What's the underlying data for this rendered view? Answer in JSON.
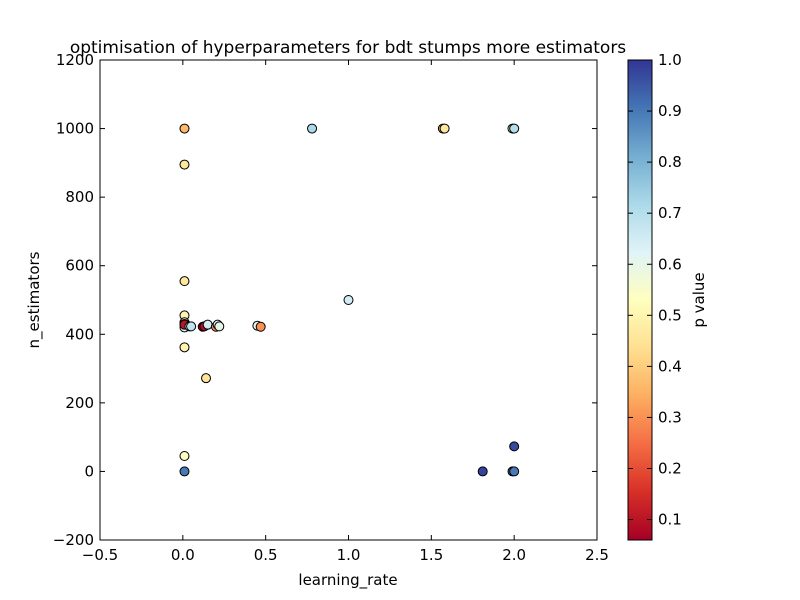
{
  "chart_data": {
    "type": "scatter",
    "title": "optimisation of hyperparameters for bdt stumps more estimators",
    "xlabel": "learning_rate",
    "ylabel": "n_estimators",
    "xlim": [
      -0.5,
      2.5
    ],
    "ylim": [
      -200,
      1200
    ],
    "x_ticks": [
      -0.5,
      0.0,
      0.5,
      1.0,
      1.5,
      2.0,
      2.5
    ],
    "x_tick_labels": [
      "−0.5",
      "0.0",
      "0.5",
      "1.0",
      "1.5",
      "2.0",
      "2.5"
    ],
    "y_ticks": [
      -200,
      0,
      200,
      400,
      600,
      800,
      1000,
      1200
    ],
    "y_tick_labels": [
      "−200",
      "0",
      "200",
      "400",
      "600",
      "800",
      "1000",
      "1200"
    ],
    "grid": false,
    "colorbar": {
      "label": "p value",
      "colormap": "RdYlBu",
      "range": [
        0.06,
        1.0
      ],
      "ticks": [
        0.1,
        0.2,
        0.3,
        0.4,
        0.5,
        0.6,
        0.7,
        0.8,
        0.9,
        1.0
      ],
      "tick_labels": [
        "0.1",
        "0.2",
        "0.3",
        "0.4",
        "0.5",
        "0.6",
        "0.7",
        "0.8",
        "0.9",
        "1.0"
      ]
    },
    "points": [
      {
        "x": 0.01,
        "y": 1000,
        "p": 0.36
      },
      {
        "x": 0.01,
        "y": 895,
        "p": 0.46
      },
      {
        "x": 0.01,
        "y": 555,
        "p": 0.46
      },
      {
        "x": 0.01,
        "y": 455,
        "p": 0.5
      },
      {
        "x": 0.01,
        "y": 435,
        "p": 0.55
      },
      {
        "x": 0.01,
        "y": 420,
        "p": 0.62
      },
      {
        "x": 0.01,
        "y": 430,
        "p": 0.22
      },
      {
        "x": 0.01,
        "y": 428,
        "p": 0.1
      },
      {
        "x": 0.01,
        "y": 362,
        "p": 0.5
      },
      {
        "x": 0.01,
        "y": 45,
        "p": 0.53
      },
      {
        "x": 0.01,
        "y": 0,
        "p": 0.9
      },
      {
        "x": 0.04,
        "y": 423,
        "p": 0.62
      },
      {
        "x": 0.05,
        "y": 423,
        "p": 0.68
      },
      {
        "x": 0.12,
        "y": 422,
        "p": 0.06
      },
      {
        "x": 0.13,
        "y": 423,
        "p": 0.08
      },
      {
        "x": 0.14,
        "y": 272,
        "p": 0.45
      },
      {
        "x": 0.15,
        "y": 428,
        "p": 0.65
      },
      {
        "x": 0.2,
        "y": 422,
        "p": 0.3
      },
      {
        "x": 0.21,
        "y": 428,
        "p": 0.62
      },
      {
        "x": 0.22,
        "y": 423,
        "p": 0.6
      },
      {
        "x": 0.45,
        "y": 425,
        "p": 0.62
      },
      {
        "x": 0.47,
        "y": 422,
        "p": 0.3
      },
      {
        "x": 0.78,
        "y": 1000,
        "p": 0.72
      },
      {
        "x": 1.0,
        "y": 500,
        "p": 0.65
      },
      {
        "x": 1.57,
        "y": 1000,
        "p": 0.38
      },
      {
        "x": 1.58,
        "y": 1000,
        "p": 0.46
      },
      {
        "x": 1.81,
        "y": 0,
        "p": 0.98
      },
      {
        "x": 1.99,
        "y": 1000,
        "p": 0.6
      },
      {
        "x": 2.0,
        "y": 1000,
        "p": 0.7
      },
      {
        "x": 2.0,
        "y": 73,
        "p": 0.97
      },
      {
        "x": 1.99,
        "y": 0,
        "p": 0.92
      },
      {
        "x": 2.0,
        "y": 0,
        "p": 0.9
      }
    ]
  }
}
